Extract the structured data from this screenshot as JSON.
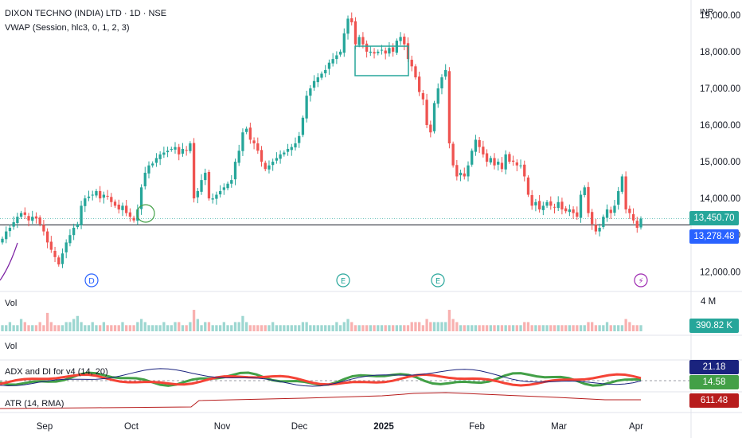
{
  "header": {
    "title": "DIXON TECHNO (INDIA) LTD · 1D · NSE",
    "indicator": "VWAP (Session, hlc3, 0, 1, 2, 3)",
    "currency": "INR"
  },
  "panes": {
    "volume_label": "Vol",
    "volume_scale": "4 M",
    "volume_value": "390.82 K",
    "vol2_label": "Vol",
    "adx_label": "ADX and DI for v4 (14, 20)",
    "adx_value": "21.18",
    "di_value": "14.58",
    "atr_label": "ATR (14, RMA)",
    "atr_value": "611.48"
  },
  "price_tags": {
    "last_price": "13,450.70",
    "level_price": "13,278.48"
  },
  "events": [
    {
      "label": "D",
      "type": "dividend"
    },
    {
      "label": "E",
      "type": "earnings"
    },
    {
      "label": "E",
      "type": "earnings"
    },
    {
      "label": "⚡",
      "type": "split"
    }
  ],
  "colors": {
    "up": "#26a69a",
    "down": "#ef5350",
    "adx": "#1a237e",
    "di_plus": "#43a047",
    "di_minus": "#f44336",
    "atr": "#b71c1c",
    "last_price_bg": "#26a69a",
    "level_bg": "#2962ff",
    "adx_bg": "#1a237e",
    "di_bg": "#43a047",
    "atr_bg": "#b71c1c",
    "vol_bg": "#26a69a"
  },
  "chart_data": {
    "type": "candlestick",
    "title": "DIXON TECHNO (INDIA) LTD · 1D · NSE",
    "x_ticks": [
      "Sep",
      "Oct",
      "Nov",
      "Dec",
      "2025",
      "Feb",
      "Mar",
      "Apr"
    ],
    "y_ticks": [
      "19,000.00",
      "18,000.00",
      "17,000.00",
      "16,000.00",
      "15,000.00",
      "14,000.00",
      "13,000.00",
      "12,000.00"
    ],
    "ylim": [
      11550,
      19300
    ],
    "horizontal_line": 13278.48,
    "last_price": 13450.7,
    "close_series": [
      12900,
      13100,
      13200,
      13350,
      13500,
      13600,
      13550,
      13400,
      13500,
      13450,
      13300,
      13100,
      12800,
      12600,
      12400,
      12200,
      12500,
      12800,
      13000,
      13200,
      13300,
      13800,
      14000,
      14050,
      14100,
      14200,
      14000,
      14100,
      14050,
      13900,
      13800,
      13700,
      13800,
      13600,
      13500,
      13400,
      13700,
      14300,
      14700,
      14900,
      14950,
      15100,
      15200,
      15250,
      15300,
      15350,
      15400,
      15200,
      15350,
      15300,
      15500,
      14000,
      14200,
      14500,
      14700,
      14000,
      14000,
      14100,
      14200,
      14300,
      14400,
      14500,
      15000,
      15300,
      15800,
      15900,
      15600,
      15500,
      15300,
      15000,
      14800,
      14900,
      15000,
      15100,
      15200,
      15250,
      15350,
      15400,
      15500,
      15700,
      16200,
      16800,
      17000,
      17200,
      17300,
      17400,
      17500,
      17700,
      17800,
      17900,
      18000,
      18500,
      18900,
      18800,
      18200,
      18400,
      18200,
      18000,
      18000,
      17950,
      18000,
      18050,
      17950,
      18100,
      18000,
      18300,
      18400,
      18200,
      17800,
      17600,
      17300,
      16900,
      16700,
      16000,
      15800,
      16600,
      17000,
      17300,
      17500,
      15500,
      14900,
      14600,
      14700,
      14600,
      14900,
      15300,
      15600,
      15400,
      15200,
      15000,
      15100,
      14900,
      15000,
      14800,
      15200,
      15000,
      15000,
      14900,
      14900,
      14600,
      14100,
      13800,
      13900,
      13700,
      13800,
      13900,
      13800,
      13750,
      13900,
      13700,
      13650,
      13700,
      13600,
      13500,
      14100,
      14300,
      13600,
      13300,
      13100,
      13200,
      13500,
      13700,
      13600,
      13800,
      14200,
      14600,
      13700,
      13600,
      13400,
      13200,
      13450.7
    ],
    "volume_series": [
      2,
      2,
      3,
      2,
      2,
      4,
      3,
      2,
      2,
      2,
      3,
      2,
      6,
      3,
      2,
      2,
      2,
      3,
      3,
      4,
      5,
      3,
      2,
      2,
      3,
      2,
      2,
      3,
      2,
      2,
      2,
      2,
      3,
      2,
      2,
      2,
      3,
      4,
      3,
      2,
      2,
      2,
      2,
      3,
      2,
      2,
      3,
      3,
      2,
      2,
      3,
      7,
      4,
      2,
      3,
      3,
      2,
      2,
      2,
      3,
      2,
      2,
      3,
      3,
      5,
      3,
      2,
      2,
      2,
      2,
      2,
      2,
      3,
      2,
      2,
      2,
      2,
      2,
      2,
      2,
      3,
      3,
      2,
      2,
      2,
      2,
      2,
      2,
      2,
      3,
      2,
      3,
      4,
      3,
      2,
      2,
      2,
      2,
      2,
      2,
      2,
      2,
      2,
      2,
      2,
      2,
      2,
      2,
      2,
      3,
      3,
      3,
      2,
      4,
      3,
      3,
      3,
      3,
      3,
      7,
      4,
      3,
      2,
      2,
      2,
      2,
      2,
      2,
      2,
      2,
      2,
      2,
      2,
      2,
      2,
      2,
      2,
      2,
      2,
      3,
      3,
      2,
      2,
      2,
      2,
      2,
      2,
      2,
      2,
      2,
      2,
      2,
      2,
      2,
      2,
      2,
      3,
      3,
      2,
      2,
      2,
      3,
      2,
      2,
      2,
      2,
      4,
      3,
      2,
      2,
      2
    ],
    "adx_value": 21.18,
    "di_value": 14.58,
    "atr_value": 611.48
  }
}
